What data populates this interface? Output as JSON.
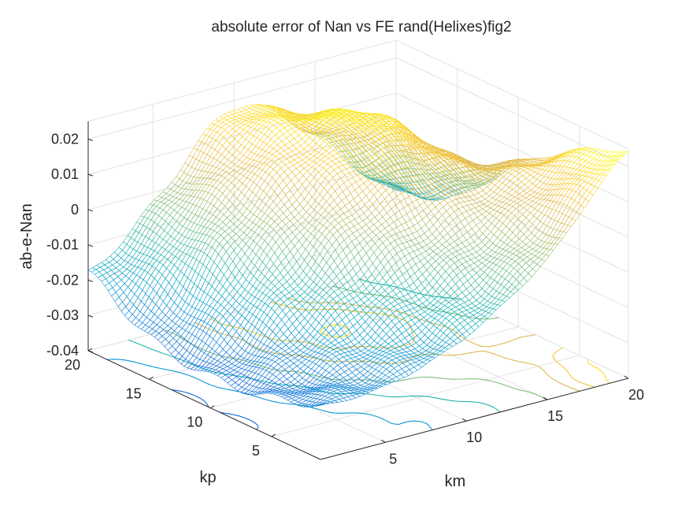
{
  "chart_data": {
    "type": "surface",
    "title": "absolute error of Nan vs FE rand(Helixes)fig2",
    "xlabel": "km",
    "ylabel": "kp",
    "zlabel": "ab-e-Nan",
    "xlim": [
      1,
      20
    ],
    "ylim": [
      1,
      20
    ],
    "zlim": [
      -0.04,
      0.025
    ],
    "x_ticks": [
      5,
      10,
      15,
      20
    ],
    "x_tick_labels": [
      "5",
      "10",
      "15",
      "20"
    ],
    "y_ticks": [
      5,
      10,
      15,
      20
    ],
    "y_tick_labels": [
      "5",
      "10",
      "15",
      "20"
    ],
    "z_ticks": [
      -0.04,
      -0.03,
      -0.02,
      -0.01,
      0,
      0.01,
      0.02
    ],
    "z_tick_labels": [
      "-0.04",
      "-0.03",
      "-0.02",
      "-0.01",
      "0",
      "0.01",
      "0.02"
    ],
    "colormap": "parula",
    "grid": true,
    "surface_style": "mesh",
    "contour_on_floor": true,
    "contour_levels": [
      -0.03,
      -0.02,
      -0.01,
      0,
      0.01,
      0.015,
      0.02
    ],
    "surface_samples": {
      "x": [
        1,
        5,
        10,
        15,
        20
      ],
      "y": [
        1,
        5,
        10,
        15,
        20
      ],
      "z": [
        [
          -0.025,
          -0.024,
          -0.016,
          0.0,
          0.024
        ],
        [
          -0.029,
          -0.022,
          -0.01,
          0.003,
          0.018
        ],
        [
          -0.031,
          -0.014,
          0.006,
          0.012,
          0.006
        ],
        [
          -0.028,
          -0.004,
          0.016,
          0.018,
          -0.011
        ],
        [
          -0.018,
          -0.003,
          0.018,
          0.004,
          -0.018
        ]
      ]
    }
  }
}
